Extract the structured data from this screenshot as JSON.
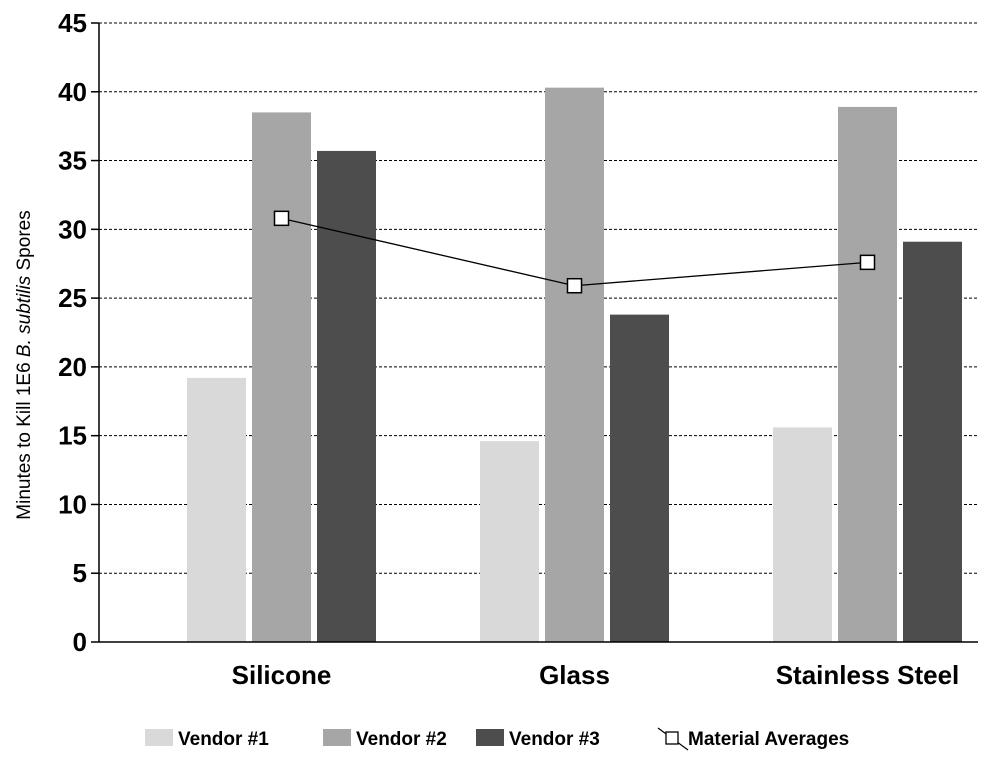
{
  "chart_data": {
    "type": "bar",
    "categories": [
      "Silicone",
      "Glass",
      "Stainless Steel"
    ],
    "series": [
      {
        "name": "Vendor #1",
        "color": "#d9d9d9",
        "values": [
          19.2,
          14.6,
          15.6
        ]
      },
      {
        "name": "Vendor #2",
        "color": "#a6a6a6",
        "values": [
          38.5,
          40.3,
          38.9
        ]
      },
      {
        "name": "Vendor #3",
        "color": "#4d4d4d",
        "values": [
          35.7,
          23.8,
          29.1
        ]
      }
    ],
    "overlay_line": {
      "name": "Material Averages",
      "marker": "square",
      "values": [
        30.8,
        25.9,
        27.6
      ]
    },
    "ylabel_parts": [
      "Minutes to Kill 1E6 ",
      "B. subtilis",
      " Spores"
    ],
    "xlabel": "",
    "title": "",
    "ylim": [
      0,
      45
    ],
    "yticks": [
      0,
      5,
      10,
      15,
      20,
      25,
      30,
      35,
      40,
      45
    ],
    "grid": "horizontal-dashed",
    "legend_position": "bottom"
  }
}
